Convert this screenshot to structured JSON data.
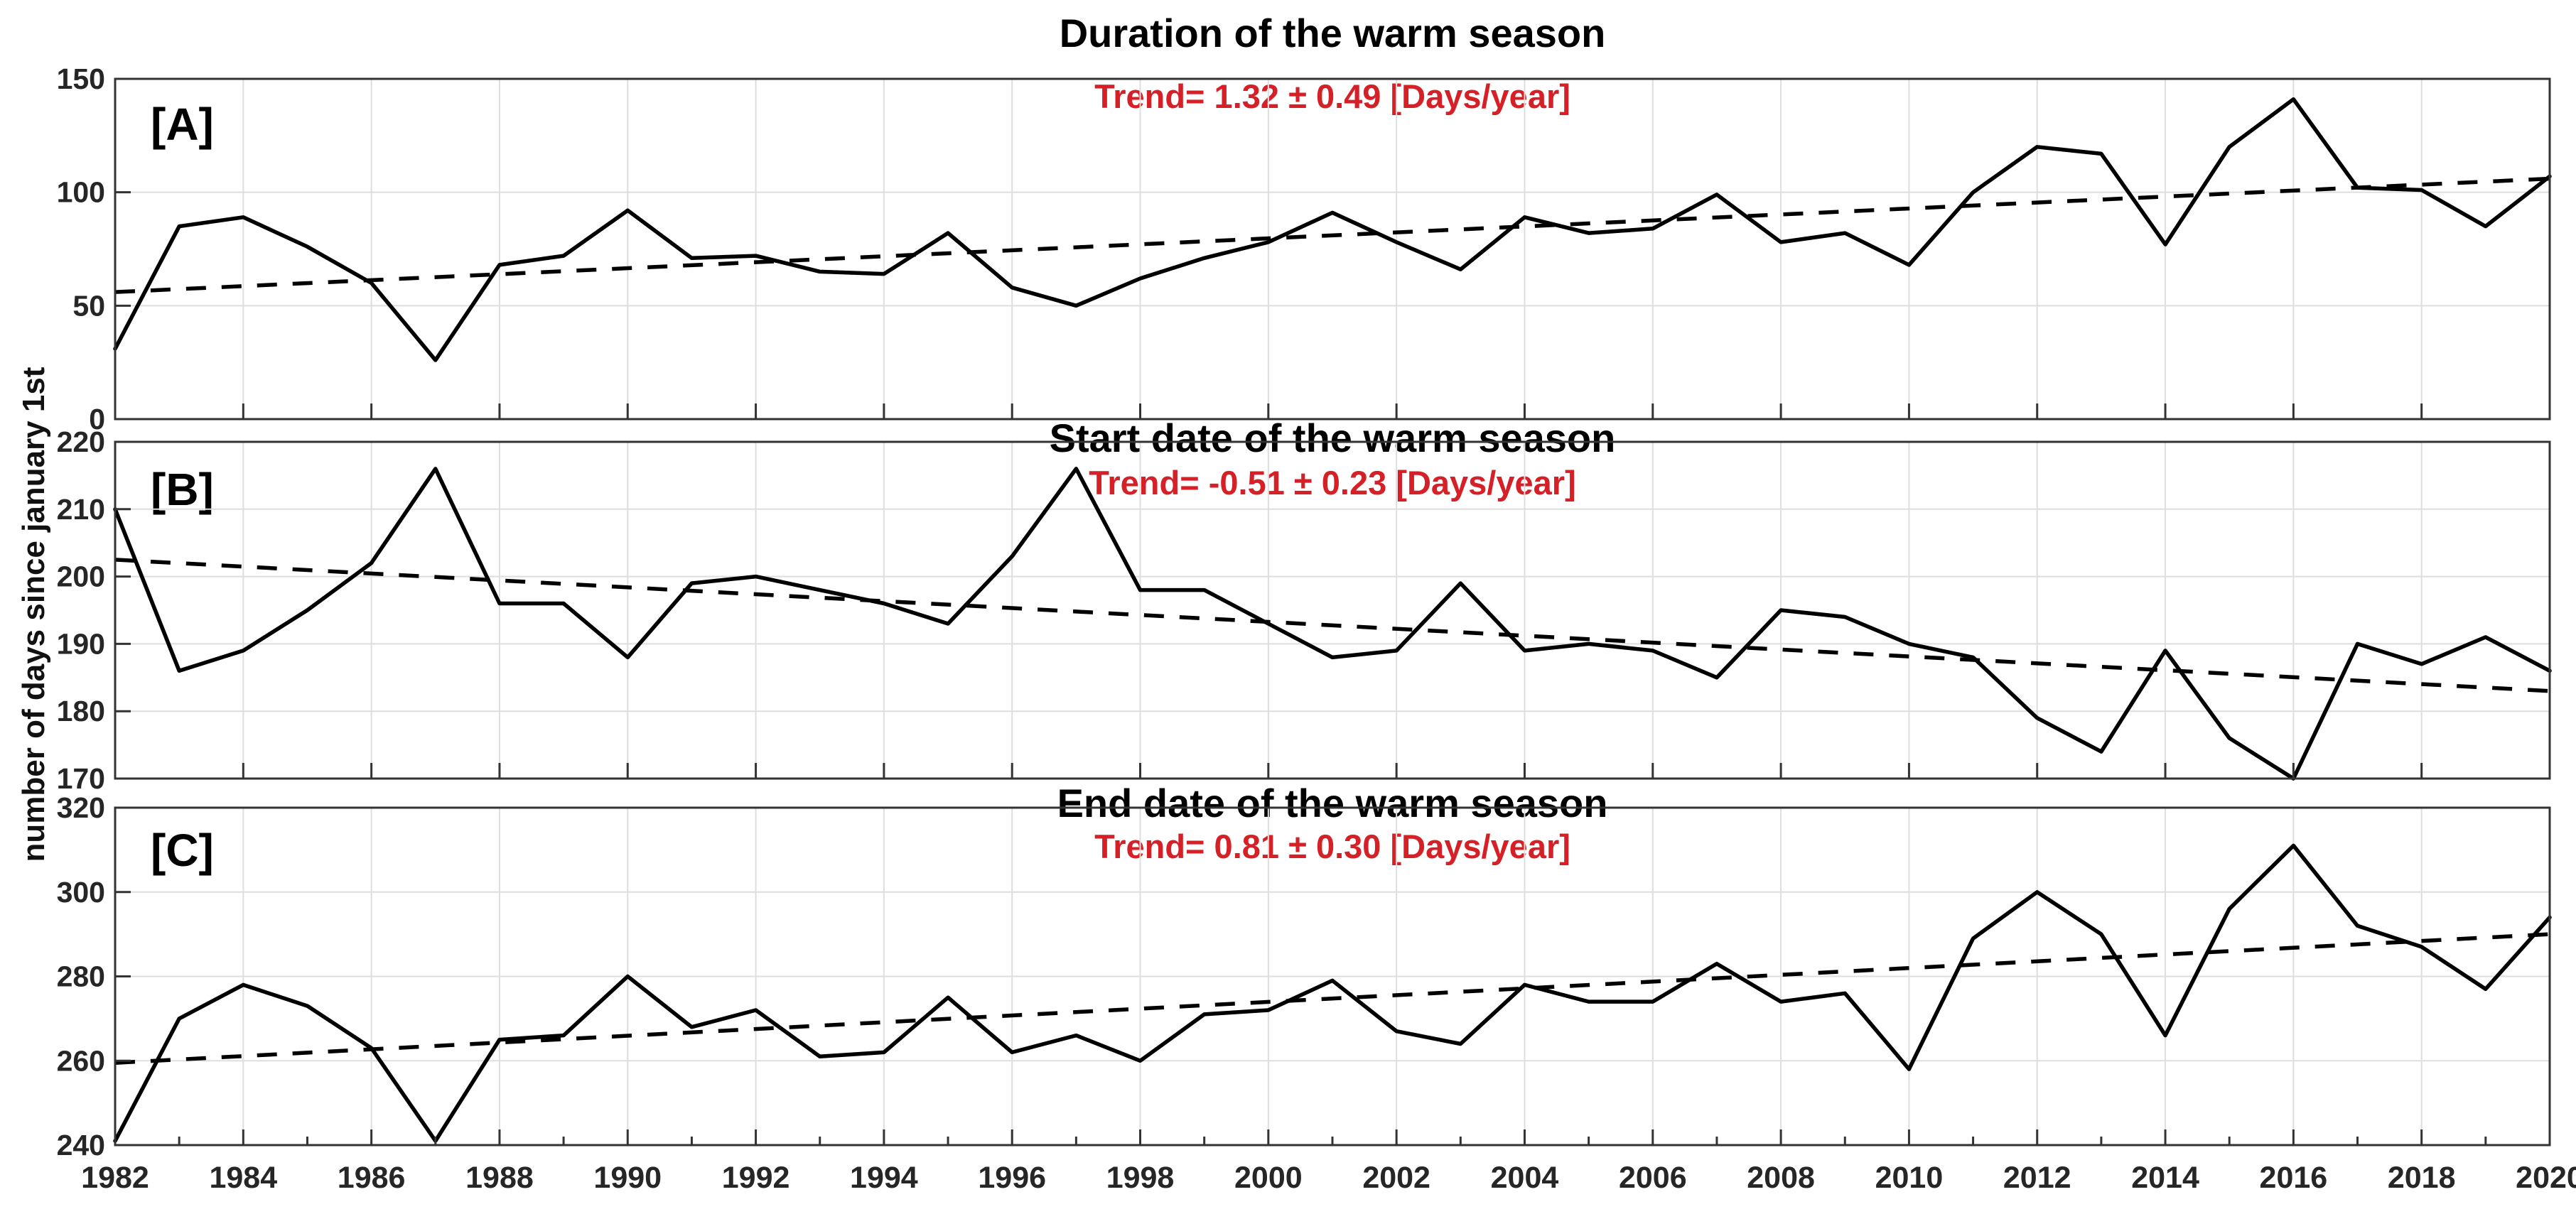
{
  "page": {
    "ylabel": "number of days since january 1st",
    "background_color": "#ffffff",
    "line_color": "#000000",
    "trend_text_color": "#d62027",
    "tick_label_color": "#262626",
    "grid_color": "#dedede"
  },
  "chart_data": {
    "type": "line",
    "x": [
      1982,
      1983,
      1984,
      1985,
      1986,
      1987,
      1988,
      1989,
      1990,
      1991,
      1992,
      1993,
      1994,
      1995,
      1996,
      1997,
      1998,
      1999,
      2000,
      2001,
      2002,
      2003,
      2004,
      2005,
      2006,
      2007,
      2008,
      2009,
      2010,
      2011,
      2012,
      2013,
      2014,
      2015,
      2016,
      2017,
      2018,
      2019,
      2020
    ],
    "xticks": [
      1982,
      1984,
      1986,
      1988,
      1990,
      1992,
      1994,
      1996,
      1998,
      2000,
      2002,
      2004,
      2006,
      2008,
      2010,
      2012,
      2014,
      2016,
      2018,
      2020
    ],
    "xlim": [
      1982,
      2020
    ],
    "grid": "on",
    "legend": "none",
    "charts": [
      {
        "panel_label": "[A]",
        "title": "Duration of the warm season",
        "trend_label": "Trend= 1.32 ± 0.49 [Days/year]",
        "trend_slope_days_per_year": 1.32,
        "trend_uncertainty": 0.49,
        "ylim": [
          0,
          150
        ],
        "yticks": [
          0,
          50,
          100,
          150
        ],
        "values": [
          31,
          85,
          89,
          76,
          60,
          26,
          68,
          72,
          92,
          71,
          72,
          65,
          64,
          82,
          58,
          50,
          62,
          71,
          78,
          91,
          78,
          66,
          89,
          82,
          84,
          99,
          78,
          82,
          68,
          100,
          120,
          117,
          77,
          120,
          141,
          102,
          101,
          85,
          107
        ],
        "trend": {
          "start_1982": 56,
          "end_2020": 106
        }
      },
      {
        "panel_label": "[B]",
        "title": "Start date of the warm season",
        "trend_label": "Trend= -0.51 ± 0.23 [Days/year]",
        "trend_slope_days_per_year": -0.51,
        "trend_uncertainty": 0.23,
        "ylim": [
          170,
          220
        ],
        "yticks": [
          170,
          180,
          190,
          200,
          210,
          220
        ],
        "values": [
          210,
          186,
          189,
          195,
          202,
          216,
          196,
          196,
          188,
          199,
          200,
          198,
          196,
          193,
          203,
          216,
          198,
          198,
          193,
          188,
          189,
          199,
          189,
          190,
          189,
          185,
          195,
          194,
          190,
          188,
          179,
          174,
          189,
          176,
          170,
          190,
          187,
          191,
          186
        ],
        "trend": {
          "start_1982": 202.5,
          "end_2020": 183
        }
      },
      {
        "panel_label": "[C]",
        "title": "End date of the warm season",
        "trend_label": "Trend= 0.81 ± 0.30 [Days/year]",
        "trend_slope_days_per_year": 0.81,
        "trend_uncertainty": 0.3,
        "ylim": [
          240,
          320
        ],
        "yticks": [
          240,
          260,
          280,
          300,
          320
        ],
        "values": [
          241,
          270,
          278,
          273,
          263,
          241,
          265,
          266,
          280,
          268,
          272,
          261,
          262,
          275,
          262,
          266,
          260,
          271,
          272,
          279,
          267,
          264,
          278,
          274,
          274,
          283,
          274,
          276,
          258,
          289,
          300,
          290,
          266,
          296,
          311,
          292,
          287,
          277,
          294
        ],
        "trend": {
          "start_1982": 259.5,
          "end_2020": 290
        }
      }
    ]
  }
}
